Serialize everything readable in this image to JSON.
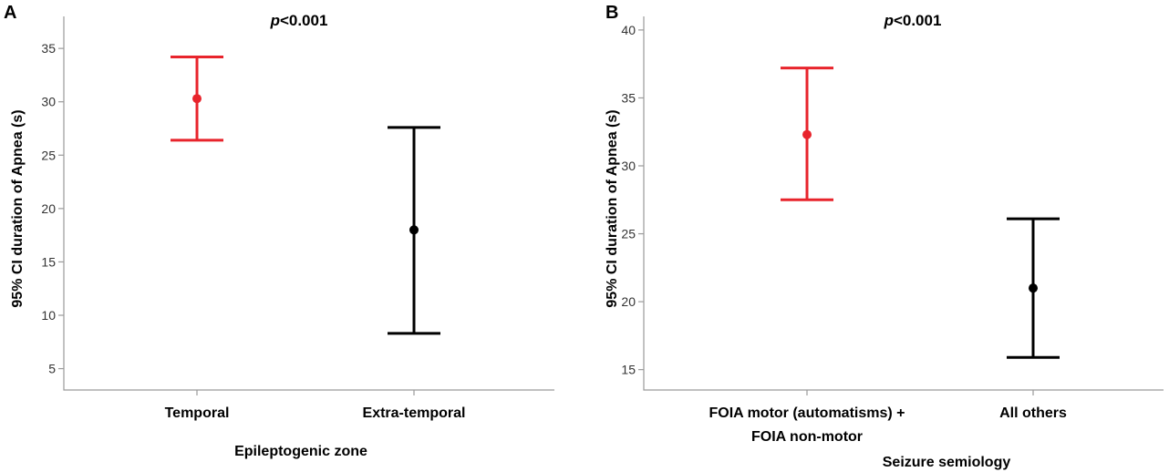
{
  "chart_data": [
    {
      "type": "errorbar",
      "panel_label": "A",
      "annotation": {
        "italic": "p",
        "rest": "<0.001"
      },
      "ylabel": "95% CI duration of Apnea (s)",
      "xlabel": "Epileptogenic zone",
      "ylim": [
        3,
        38
      ],
      "yticks": [
        5,
        10,
        15,
        20,
        25,
        30,
        35
      ],
      "categories": [
        {
          "label": [
            "Temporal"
          ],
          "mean": 30.3,
          "lower": 26.4,
          "upper": 34.2,
          "color": "#e8242c"
        },
        {
          "label": [
            "Extra-temporal"
          ],
          "mean": 18.0,
          "lower": 8.3,
          "upper": 27.6,
          "color": "#000000"
        }
      ],
      "grid": false
    },
    {
      "type": "errorbar",
      "panel_label": "B",
      "annotation": {
        "italic": "p",
        "rest": "<0.001"
      },
      "ylabel": "95% CI duration of Apnea (s)",
      "xlabel": "Seizure semiology",
      "ylim": [
        13.5,
        41
      ],
      "yticks": [
        15,
        20,
        25,
        30,
        35,
        40
      ],
      "categories": [
        {
          "label": [
            "FOIA motor (automatisms) +",
            "FOIA non-motor"
          ],
          "mean": 32.3,
          "lower": 27.5,
          "upper": 37.2,
          "color": "#e8242c"
        },
        {
          "label": [
            "All others"
          ],
          "mean": 21.0,
          "lower": 15.9,
          "upper": 26.1,
          "color": "#000000"
        }
      ],
      "grid": false
    }
  ]
}
